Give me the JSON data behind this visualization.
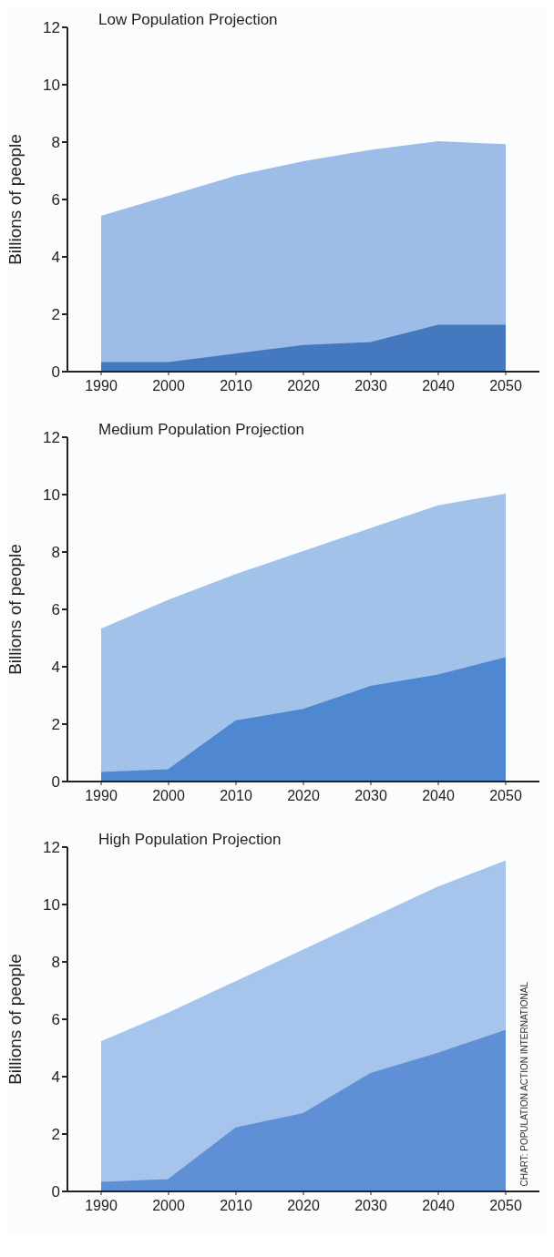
{
  "chart_data": [
    {
      "type": "area",
      "title": "Low Population Projection",
      "ylabel": "Billions of people",
      "x": [
        1990,
        2000,
        2010,
        2020,
        2030,
        2040,
        2050
      ],
      "series": [
        {
          "color": "#9dbde8",
          "values": [
            5.4,
            6.1,
            6.8,
            7.3,
            7.7,
            8.0,
            7.9
          ]
        },
        {
          "color": "#4479c0",
          "values": [
            0.3,
            0.3,
            0.6,
            0.9,
            1.0,
            1.6,
            1.6
          ]
        }
      ],
      "xlim": [
        1985,
        2055
      ],
      "xticks": [
        1990,
        2000,
        2010,
        2020,
        2030,
        2040,
        2050
      ],
      "ylim": [
        0,
        12
      ],
      "yticks": [
        0,
        2,
        4,
        6,
        8,
        10,
        12
      ]
    },
    {
      "type": "area",
      "title": "Medium Population Projection",
      "ylabel": "Billions of people",
      "x": [
        1990,
        2000,
        2010,
        2020,
        2030,
        2040,
        2050
      ],
      "series": [
        {
          "color": "#a2c2ea",
          "values": [
            5.3,
            6.3,
            7.2,
            8.0,
            8.8,
            9.6,
            10.0
          ]
        },
        {
          "color": "#4f88d0",
          "values": [
            0.3,
            0.4,
            2.1,
            2.5,
            3.3,
            3.7,
            4.3
          ]
        }
      ],
      "xlim": [
        1985,
        2055
      ],
      "xticks": [
        1990,
        2000,
        2010,
        2020,
        2030,
        2040,
        2050
      ],
      "ylim": [
        0,
        12
      ],
      "yticks": [
        0,
        2,
        4,
        6,
        8,
        10,
        12
      ]
    },
    {
      "type": "area",
      "title": "High Population Projection",
      "ylabel": "Billions of people",
      "x": [
        1990,
        2000,
        2010,
        2020,
        2030,
        2040,
        2050
      ],
      "series": [
        {
          "color": "#a6c4ec",
          "values": [
            5.2,
            6.2,
            7.3,
            8.4,
            9.5,
            10.6,
            11.5
          ]
        },
        {
          "color": "#5f90d6",
          "values": [
            0.3,
            0.4,
            2.2,
            2.7,
            4.1,
            4.8,
            5.6
          ]
        }
      ],
      "xlim": [
        1985,
        2055
      ],
      "xticks": [
        1990,
        2000,
        2010,
        2020,
        2030,
        2040,
        2050
      ],
      "ylim": [
        0,
        12
      ],
      "yticks": [
        0,
        2,
        4,
        6,
        8,
        10,
        12
      ],
      "annotations": [
        "CHART: POPULATION ACTION INTERNATIONAL"
      ]
    }
  ]
}
